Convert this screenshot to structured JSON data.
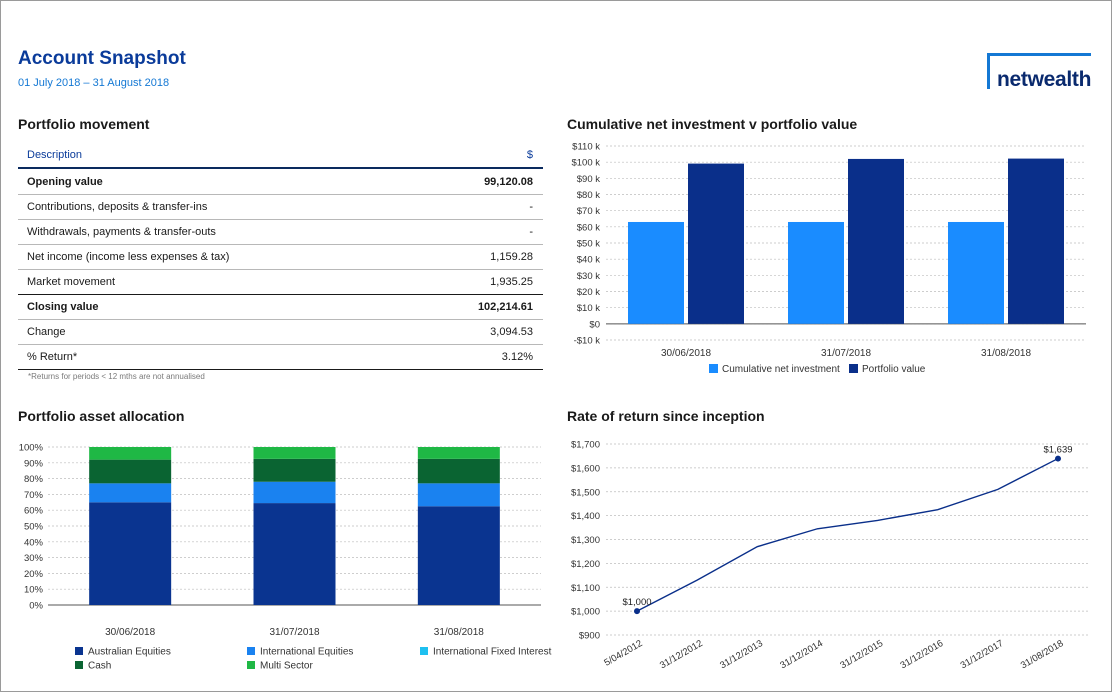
{
  "header": {
    "title": "Account Snapshot",
    "subtitle": "01 July 2018 – 31 August 2018",
    "logo_text": "netwealth"
  },
  "portfolio_movement": {
    "title": "Portfolio movement",
    "col_description": "Description",
    "col_amount": "$",
    "rows": [
      {
        "label": "Opening value",
        "value": "99,120.08"
      },
      {
        "label": "Contributions, deposits & transfer-ins",
        "value": "-"
      },
      {
        "label": "Withdrawals, payments & transfer-outs",
        "value": "-"
      },
      {
        "label": "Net income (income less expenses & tax)",
        "value": "1,159.28"
      },
      {
        "label": "Market movement",
        "value": "1,935.25"
      },
      {
        "label": "Closing value",
        "value": "102,214.61"
      },
      {
        "label": "Change",
        "value": "3,094.53"
      },
      {
        "label": "% Return*",
        "value": "3.12%"
      }
    ],
    "footnote": "*Returns for periods < 12 mths are not annualised"
  },
  "chart_data": [
    {
      "type": "bar",
      "title": "Cumulative net investment v portfolio value",
      "categories": [
        "30/06/2018",
        "31/07/2018",
        "31/08/2018"
      ],
      "series": [
        {
          "name": "Cumulative net investment",
          "values": [
            63000,
            63000,
            63000
          ],
          "color": "#1a8cff"
        },
        {
          "name": "Portfolio value",
          "values": [
            99120,
            102000,
            102215
          ],
          "color": "#0a2f8a"
        }
      ],
      "yticks": [
        -10000,
        0,
        10000,
        20000,
        30000,
        40000,
        50000,
        60000,
        70000,
        80000,
        90000,
        100000,
        110000
      ],
      "ytick_labels": [
        "-$10 k",
        "$0",
        "$10 k",
        "$20 k",
        "$30 k",
        "$40 k",
        "$50 k",
        "$60 k",
        "$70 k",
        "$80 k",
        "$90 k",
        "$100 k",
        "$110 k"
      ],
      "ylim": [
        -10000,
        110000
      ],
      "grid": true,
      "legend": "bottom"
    },
    {
      "type": "bar",
      "stacked": true,
      "title": "Portfolio asset allocation",
      "categories": [
        "30/06/2018",
        "31/07/2018",
        "31/08/2018"
      ],
      "series": [
        {
          "name": "Australian Equities",
          "values": [
            65,
            64.5,
            62.5
          ],
          "color": "#0a3490"
        },
        {
          "name": "International Equities",
          "values": [
            12,
            13.5,
            14.5
          ],
          "color": "#1a82f0"
        },
        {
          "name": "International Fixed Interest",
          "values": [
            0,
            0,
            0
          ],
          "color": "#1ec0f0"
        },
        {
          "name": "Cash",
          "values": [
            15,
            14.5,
            15.5
          ],
          "color": "#0a6432"
        },
        {
          "name": "Multi Sector",
          "values": [
            8,
            7.5,
            7.5
          ],
          "color": "#1fb845"
        }
      ],
      "yticks": [
        0,
        10,
        20,
        30,
        40,
        50,
        60,
        70,
        80,
        90,
        100
      ],
      "ytick_labels": [
        "0%",
        "10%",
        "20%",
        "30%",
        "40%",
        "50%",
        "60%",
        "70%",
        "80%",
        "90%",
        "100%"
      ],
      "ylim": [
        0,
        100
      ],
      "grid": true,
      "legend": "bottom"
    },
    {
      "type": "line",
      "title": "Rate of return since inception",
      "x": [
        "5/04/2012",
        "31/12/2012",
        "31/12/2013",
        "31/12/2014",
        "31/12/2015",
        "31/12/2016",
        "31/12/2017",
        "31/08/2018"
      ],
      "y": [
        1000,
        1130,
        1270,
        1345,
        1380,
        1425,
        1510,
        1639
      ],
      "point_labels": [
        "$1,000",
        "",
        "",
        "",
        "",
        "",
        "",
        "$1,639"
      ],
      "yticks": [
        900,
        1000,
        1100,
        1200,
        1300,
        1400,
        1500,
        1600,
        1700
      ],
      "ytick_labels": [
        "$900",
        "$1,000",
        "$1,100",
        "$1,200",
        "$1,300",
        "$1,400",
        "$1,500",
        "$1,600",
        "$1,700"
      ],
      "ylim": [
        900,
        1700
      ],
      "color": "#0a2f8a",
      "grid": true
    }
  ]
}
